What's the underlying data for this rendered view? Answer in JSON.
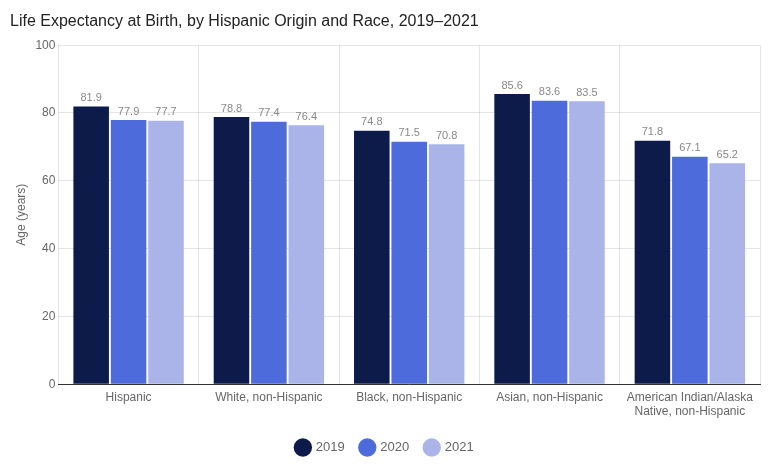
{
  "chart_data": {
    "type": "bar",
    "title": "Life Expectancy at Birth, by Hispanic Origin and Race, 2019–2021",
    "ylabel": "Age (years)",
    "categories": [
      "Hispanic",
      "White, non-Hispanic",
      "Black, non-Hispanic",
      "Asian, non-Hispanic",
      "American Indian/Alaska\nNative, non-Hispanic"
    ],
    "series": [
      {
        "name": "2019",
        "color": "#0d1b4b",
        "values": [
          81.9,
          78.8,
          74.8,
          85.6,
          71.8
        ]
      },
      {
        "name": "2020",
        "color": "#4d6bdb",
        "values": [
          77.9,
          77.4,
          71.5,
          83.6,
          67.1
        ]
      },
      {
        "name": "2021",
        "color": "#aab4e8",
        "values": [
          77.7,
          76.4,
          70.8,
          83.5,
          65.2
        ]
      }
    ],
    "ylim": [
      0,
      100
    ],
    "yticks": [
      0,
      20,
      40,
      60,
      80,
      100
    ],
    "grid": true,
    "legend": "bottom",
    "data_labels": true
  }
}
